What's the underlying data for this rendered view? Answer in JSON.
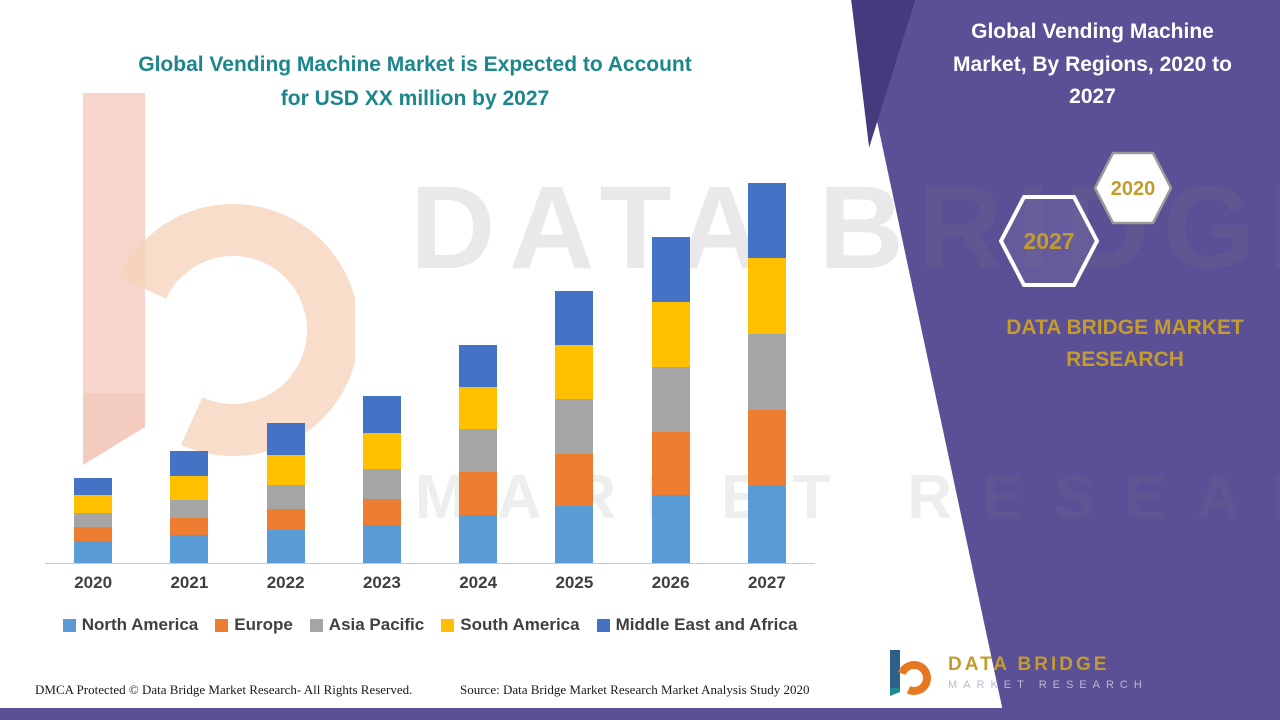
{
  "chart_title": {
    "line1": "Global Vending Machine Market is Expected to Account",
    "line2": "for USD XX  million by 2027"
  },
  "chart_data": {
    "type": "bar",
    "stacked": true,
    "title": "Global Vending Machine Market is Expected to Account for USD XX million by 2027",
    "xlabel": "",
    "ylabel": "",
    "note": "No y-axis scale or data labels shown; values are relative units estimated from bar heights",
    "ylim": [
      0,
      400
    ],
    "pixels_per_unit": 1,
    "grid": false,
    "legend_position": "bottom",
    "categories": [
      "2020",
      "2021",
      "2022",
      "2023",
      "2024",
      "2025",
      "2026",
      "2027"
    ],
    "series": [
      {
        "name": "North America",
        "color": "#5B9BD5",
        "values": [
          22,
          28,
          33,
          38,
          48,
          57,
          68,
          77
        ]
      },
      {
        "name": "Europe",
        "color": "#ED7D31",
        "values": [
          14,
          17,
          21,
          26,
          43,
          52,
          63,
          76
        ]
      },
      {
        "name": "Asia Pacific",
        "color": "#A5A5A5",
        "values": [
          14,
          18,
          24,
          30,
          43,
          55,
          65,
          76
        ]
      },
      {
        "name": "South America",
        "color": "#FFC000",
        "values": [
          18,
          24,
          30,
          36,
          42,
          54,
          65,
          76
        ]
      },
      {
        "name": "Middle East and Africa",
        "color": "#4472C4",
        "values": [
          17,
          25,
          32,
          37,
          42,
          54,
          65,
          75
        ]
      }
    ]
  },
  "right_panel": {
    "title_lines": [
      "Global Vending Machine",
      "Market, By Regions, 2020 to",
      "2027"
    ],
    "badge_front": "2027",
    "badge_back": "2020",
    "brand_line1": "DATA BRIDGE MARKET",
    "brand_line2": "RESEARCH"
  },
  "watermark": {
    "line1": "DATA BRIDGE",
    "line2": "MARKET RESEARCH"
  },
  "logo": {
    "name": "DATA BRIDGE",
    "sub": "MARKET RESEARCH"
  },
  "footer": {
    "dmca": "DMCA Protected © Data Bridge Market Research- All Rights Reserved.",
    "source": "Source: Data Bridge Market Research Market Analysis Study 2020"
  },
  "colors": {
    "accent_purple": "#5B5096",
    "accent_purple_dark": "#453A7D",
    "title_teal": "#1B878D",
    "brand_gold": "#C49B2D",
    "axis_gray": "#C9C9C9"
  }
}
